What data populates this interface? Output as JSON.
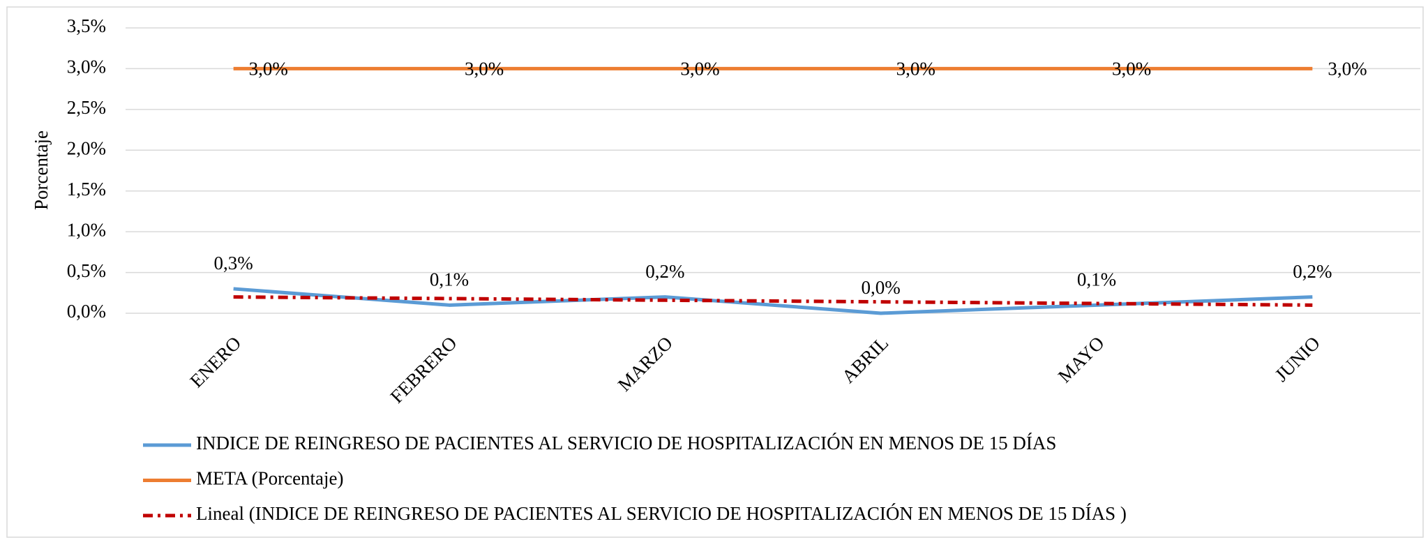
{
  "chart_data": {
    "type": "line",
    "y_label": "Porcentaje",
    "categories": [
      "ENERO",
      "FEBRERO",
      "MARZO",
      "ABRIL",
      "MAYO",
      "JUNIO"
    ],
    "series": [
      {
        "name": "INDICE  DE REINGRESO DE PACIENTES AL SERVICIO DE HOSPITALIZACIÓN EN MENOS DE 15 DÍAS",
        "color": "#5b9bd5",
        "dash": "solid",
        "values": [
          0.3,
          0.1,
          0.2,
          0.0,
          0.1,
          0.2
        ],
        "value_labels": [
          "0,3%",
          "0,1%",
          "0,2%",
          "0,0%",
          "0,1%",
          "0,2%"
        ],
        "label_position": "above"
      },
      {
        "name": "META (Porcentaje)",
        "color": "#ed7d31",
        "dash": "solid",
        "values": [
          3.0,
          3.0,
          3.0,
          3.0,
          3.0,
          3.0
        ],
        "value_labels": [
          "3,0%",
          "3,0%",
          "3,0%",
          "3,0%",
          "3,0%",
          "3,0%"
        ],
        "label_position": "right"
      },
      {
        "name": "Lineal (INDICE  DE REINGRESO DE PACIENTES AL SERVICIO DE HOSPITALIZACIÓN EN MENOS DE 15 DÍAS )",
        "color": "#c00000",
        "dash": "dashdot",
        "values": [
          0.2,
          0.18,
          0.16,
          0.14,
          0.12,
          0.1
        ]
      }
    ],
    "ylim": [
      0,
      3.5
    ],
    "yticks": [
      {
        "value": 0,
        "label": "0,0%"
      },
      {
        "value": 0.5,
        "label": "0,5%"
      },
      {
        "value": 1,
        "label": "1,0%"
      },
      {
        "value": 1.5,
        "label": "1,5%"
      },
      {
        "value": 2,
        "label": "2,0%"
      },
      {
        "value": 2.5,
        "label": "2,5%"
      },
      {
        "value": 3,
        "label": "3,0%"
      },
      {
        "value": 3.5,
        "label": "3,5%"
      }
    ],
    "grid": true,
    "legend": "bottom"
  }
}
